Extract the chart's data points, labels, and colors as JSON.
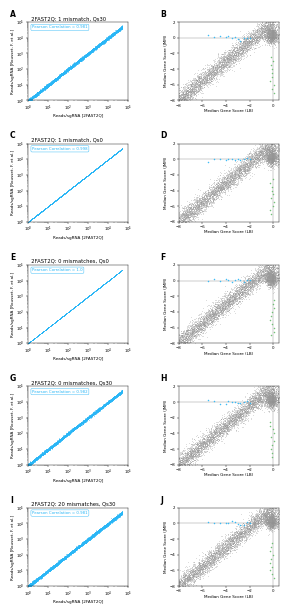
{
  "panels_left": [
    {
      "label": "A",
      "title": "2FAST2Q: 1 mismatch, Qs30",
      "pearson": "Pearson Correlation = 0.981"
    },
    {
      "label": "C",
      "title": "2FAST2Q: 1 mismatch, Qs0",
      "pearson": "Pearson Correlation = 0.998"
    },
    {
      "label": "E",
      "title": "2FAST2Q: 0 mismatches, Qs0",
      "pearson": "Pearson Correlation = 1.0"
    },
    {
      "label": "G",
      "title": "2FAST2Q: 0 mismatches, Qs30",
      "pearson": "Pearson Correlation = 0.982"
    },
    {
      "label": "I",
      "title": "2FAST2Q: 20 mismatches, Qs30",
      "pearson": "Pearson Correlation = 0.981"
    }
  ],
  "panels_right": [
    {
      "label": "B"
    },
    {
      "label": "D"
    },
    {
      "label": "F"
    },
    {
      "label": "H"
    },
    {
      "label": "J"
    }
  ],
  "scatter_color": "#29b6f6",
  "dot_color_grey": "#999999",
  "dot_color_blue": "#29b6f6",
  "dot_color_green": "#66bb6a",
  "xlabel_left": "Reads/sgRNA [2FAST2Q]",
  "ylabel_left": "Reads/sgRNA [Rousset, F. et al.]",
  "xlabel_right": "Median Gene Score (LB)",
  "ylabel_right": "Median Gene Score (JMM)",
  "pearson_vals": [
    0.981,
    0.998,
    1.0,
    0.982,
    0.981
  ],
  "tight_flags": [
    false,
    false,
    true,
    false,
    false
  ],
  "n_left": [
    6000,
    5000,
    2000,
    6000,
    6000
  ]
}
